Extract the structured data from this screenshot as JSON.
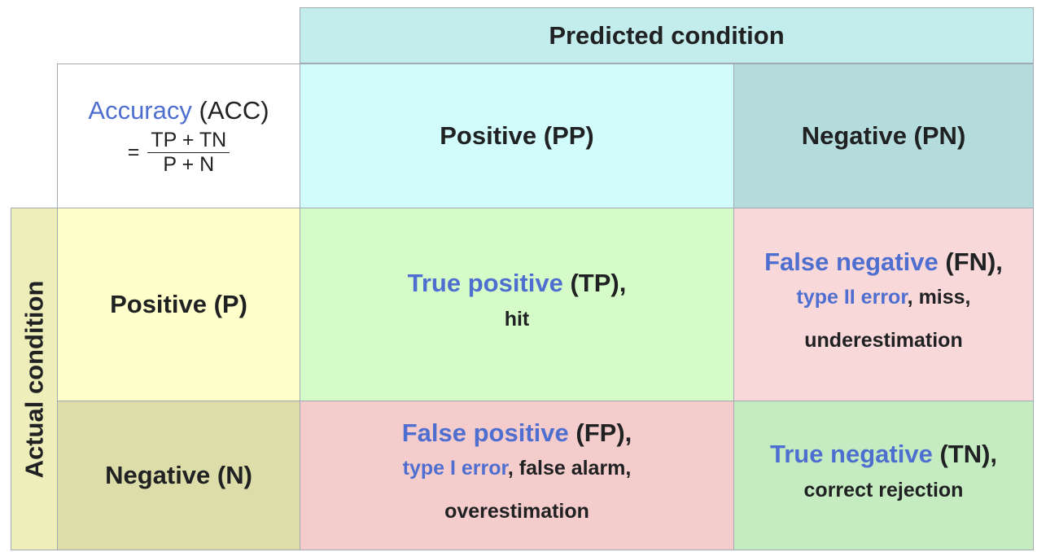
{
  "predicted_condition": "Predicted condition",
  "actual_condition": "Actual condition",
  "accuracy": {
    "term": "Accuracy",
    "abbr": "(ACC)",
    "equals": "=",
    "numerator": "TP + TN",
    "denominator": "P + N"
  },
  "predicted": {
    "positive": "Positive (PP)",
    "negative": "Negative (PN)"
  },
  "actual": {
    "positive": "Positive (P)",
    "negative": "Negative (N)"
  },
  "tp": {
    "term": "True positive",
    "abbr": " (TP),",
    "line2": "hit"
  },
  "fn": {
    "term": "False negative",
    "abbr": " (FN),",
    "line2_link": "type II error",
    "line2_rest": ", miss,",
    "line3": "underestimation"
  },
  "fp": {
    "term": "False positive",
    "abbr": " (FP),",
    "line2_link": "type I error",
    "line2_rest": ", false alarm,",
    "line3": "overestimation"
  },
  "tn": {
    "term": "True negative",
    "abbr": " (TN),",
    "line2": "correct rejection"
  },
  "colors": {
    "link": "#4f6fd0",
    "predicted_header": "#c3ecec",
    "predicted_positive": "#d2fcfc",
    "predicted_negative": "#b4dcdc",
    "actual_header": "#eeeebb",
    "actual_positive": "#ffffcc",
    "actual_negative": "#ddddaa",
    "true_positive": "#d5fcc8",
    "false_negative": "#f8d8d8",
    "false_positive": "#f5cccc",
    "true_negative": "#c5ecc0"
  }
}
